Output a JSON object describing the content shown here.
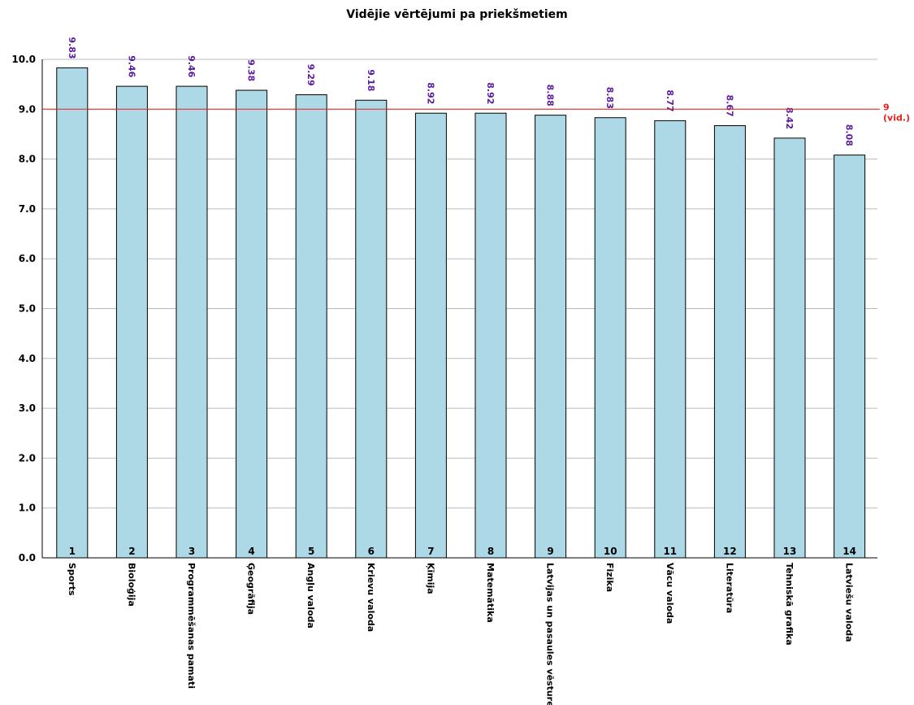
{
  "colors": {
    "bar_fill": "#add8e6",
    "bar_stroke": "#000000",
    "grid": "#bbbbbb",
    "average_line": "#e8201a",
    "value_label": "#5b1a9e"
  },
  "chart_data": {
    "type": "bar",
    "title": "Vidējie vērtējumi pa priekšmetiem",
    "xlabel": "",
    "ylabel": "",
    "ylim": [
      0,
      10
    ],
    "yticks": [
      "0.0",
      "1.0",
      "2.0",
      "3.0",
      "4.0",
      "5.0",
      "6.0",
      "7.0",
      "8.0",
      "9.0",
      "10.0"
    ],
    "grid": true,
    "categories": [
      "Sports",
      "Bioloģija",
      "Programmēšanas pamati",
      "Ģeogrāfija",
      "Angļu valoda",
      "Krievu valoda",
      "Ķīmija",
      "Matemātika",
      "Latvijas un pasaules vēsture",
      "Fizika",
      "Vācu valoda",
      "Literatūra",
      "Tehniskā grafika",
      "Latviešu valoda"
    ],
    "numbers": [
      "1",
      "2",
      "3",
      "4",
      "5",
      "6",
      "7",
      "8",
      "9",
      "10",
      "11",
      "12",
      "13",
      "14"
    ],
    "values": [
      9.83,
      9.46,
      9.46,
      9.38,
      9.29,
      9.18,
      8.92,
      8.92,
      8.88,
      8.83,
      8.77,
      8.67,
      8.42,
      8.08
    ],
    "value_labels": [
      "9.83",
      "9.46",
      "9.46",
      "9.38",
      "9.29",
      "9.18",
      "8.92",
      "8.92",
      "8.88",
      "8.83",
      "8.77",
      "8.67",
      "8.42",
      "8.08"
    ],
    "reference_line": {
      "value": 9,
      "label_value": "9",
      "label_note": "(vid.)"
    }
  }
}
